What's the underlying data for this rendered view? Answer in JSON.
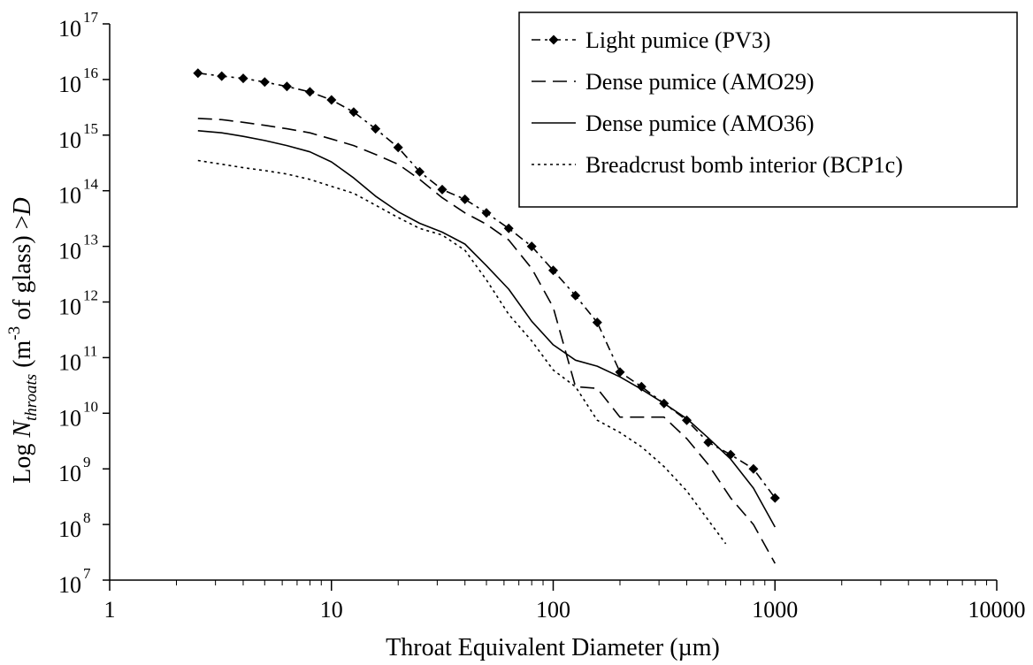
{
  "chart_data": {
    "type": "line",
    "title": "",
    "xlabel": "Throat Equivalent Diameter (µm)",
    "ylabel": {
      "prefix": "Log ",
      "n": "N",
      "sub": "throats",
      "mid1": " (m",
      "sup": "-3",
      "mid2": " of glass) >",
      "d": "D"
    },
    "x_scale": "log",
    "y_scale": "log",
    "xlim": [
      1,
      10000
    ],
    "ylim": [
      10000000.0,
      1e+17
    ],
    "x_ticks": [
      {
        "value": 1,
        "label": "1"
      },
      {
        "value": 10,
        "label": "10"
      },
      {
        "value": 100,
        "label": "100"
      },
      {
        "value": 1000,
        "label": "1000"
      },
      {
        "value": 10000,
        "label": "10000"
      }
    ],
    "y_ticks": [
      {
        "value": 10000000.0,
        "base": "10",
        "exp": "7"
      },
      {
        "value": 100000000.0,
        "base": "10",
        "exp": "8"
      },
      {
        "value": 1000000000.0,
        "base": "10",
        "exp": "9"
      },
      {
        "value": 10000000000.0,
        "base": "10",
        "exp": "10"
      },
      {
        "value": 100000000000.0,
        "base": "10",
        "exp": "11"
      },
      {
        "value": 1000000000000.0,
        "base": "10",
        "exp": "12"
      },
      {
        "value": 10000000000000.0,
        "base": "10",
        "exp": "13"
      },
      {
        "value": 100000000000000.0,
        "base": "10",
        "exp": "14"
      },
      {
        "value": 1000000000000000.0,
        "base": "10",
        "exp": "15"
      },
      {
        "value": 1e+16,
        "base": "10",
        "exp": "16"
      },
      {
        "value": 1e+17,
        "base": "10",
        "exp": "17"
      }
    ],
    "grid": false,
    "legend_position": "top-right",
    "series": [
      {
        "name": "Light pumice (PV3)",
        "style": "dash-dot-diamond",
        "x": [
          2.5,
          3.2,
          4,
          5,
          6.3,
          8,
          10,
          12.6,
          15.8,
          20,
          25,
          31.6,
          40,
          50,
          63,
          80,
          100,
          126,
          158,
          200,
          250,
          316,
          400,
          500,
          631,
          800,
          1000
        ],
        "y": [
          1.3e+16,
          1.15e+16,
          1.05e+16,
          9000000000000000.0,
          7500000000000000.0,
          6000000000000000.0,
          4300000000000000.0,
          2600000000000000.0,
          1300000000000000.0,
          600000000000000.0,
          220000000000000.0,
          105000000000000.0,
          70000000000000.0,
          40000000000000.0,
          21000000000000.0,
          10000000000000.0,
          3700000000000.0,
          1300000000000.0,
          430000000000.0,
          55000000000.0,
          30000000000.0,
          15000000000.0,
          7500000000.0,
          3000000000.0,
          1800000000.0,
          1000000000.0,
          300000000.0
        ]
      },
      {
        "name": "Dense pumice (AMO29)",
        "style": "dash",
        "x": [
          2.5,
          3.2,
          4,
          5,
          6.3,
          8,
          10,
          12.6,
          15.8,
          20,
          25,
          31.6,
          40,
          50,
          63,
          80,
          100,
          126,
          158,
          200,
          250,
          316,
          400,
          500,
          631,
          800,
          1000
        ],
        "y": [
          2000000000000000.0,
          1900000000000000.0,
          1700000000000000.0,
          1500000000000000.0,
          1300000000000000.0,
          1100000000000000.0,
          850000000000000.0,
          650000000000000.0,
          450000000000000.0,
          300000000000000.0,
          160000000000000.0,
          75000000000000.0,
          40000000000000.0,
          25000000000000.0,
          13000000000000.0,
          4000000000000.0,
          800000000000.0,
          30000000000.0,
          28000000000.0,
          8500000000.0,
          8500000000.0,
          8500000000.0,
          3500000000.0,
          1200000000.0,
          300000000.0,
          100000000.0,
          20000000.0
        ]
      },
      {
        "name": "Dense pumice (AMO36)",
        "style": "solid",
        "x": [
          2.5,
          3.2,
          4,
          5,
          6.3,
          8,
          10,
          12.6,
          15.8,
          20,
          25,
          31.6,
          40,
          50,
          63,
          80,
          100,
          126,
          158,
          200,
          250,
          316,
          400,
          500,
          631,
          800,
          1000
        ],
        "y": [
          1200000000000000.0,
          1100000000000000.0,
          950000000000000.0,
          800000000000000.0,
          650000000000000.0,
          500000000000000.0,
          330000000000000.0,
          170000000000000.0,
          80000000000000.0,
          42000000000000.0,
          26000000000000.0,
          18000000000000.0,
          11000000000000.0,
          4500000000000.0,
          1700000000000.0,
          450000000000.0,
          170000000000.0,
          90000000000.0,
          70000000000.0,
          45000000000.0,
          27000000000.0,
          15000000000.0,
          8000000000.0,
          3600000000.0,
          1500000000.0,
          450000000.0,
          90000000.0
        ]
      },
      {
        "name": "Breadcrust bomb interior (BCP1c)",
        "style": "dot",
        "x": [
          2.5,
          3.2,
          4,
          5,
          6.3,
          8,
          10,
          12.6,
          15.8,
          20,
          25,
          31.6,
          40,
          50,
          63,
          80,
          100,
          126,
          158,
          200,
          250,
          316,
          400,
          500,
          600
        ],
        "y": [
          350000000000000.0,
          300000000000000.0,
          260000000000000.0,
          230000000000000.0,
          200000000000000.0,
          160000000000000.0,
          120000000000000.0,
          90000000000000.0,
          55000000000000.0,
          33000000000000.0,
          21000000000000.0,
          16000000000000.0,
          8500000000000.0,
          2500000000000.0,
          600000000000.0,
          200000000000.0,
          60000000000.0,
          30000000000.0,
          7500000000.0,
          4500000000.0,
          2500000000.0,
          1100000000.0,
          400000000.0,
          120000000.0,
          45000000.0
        ]
      }
    ]
  }
}
